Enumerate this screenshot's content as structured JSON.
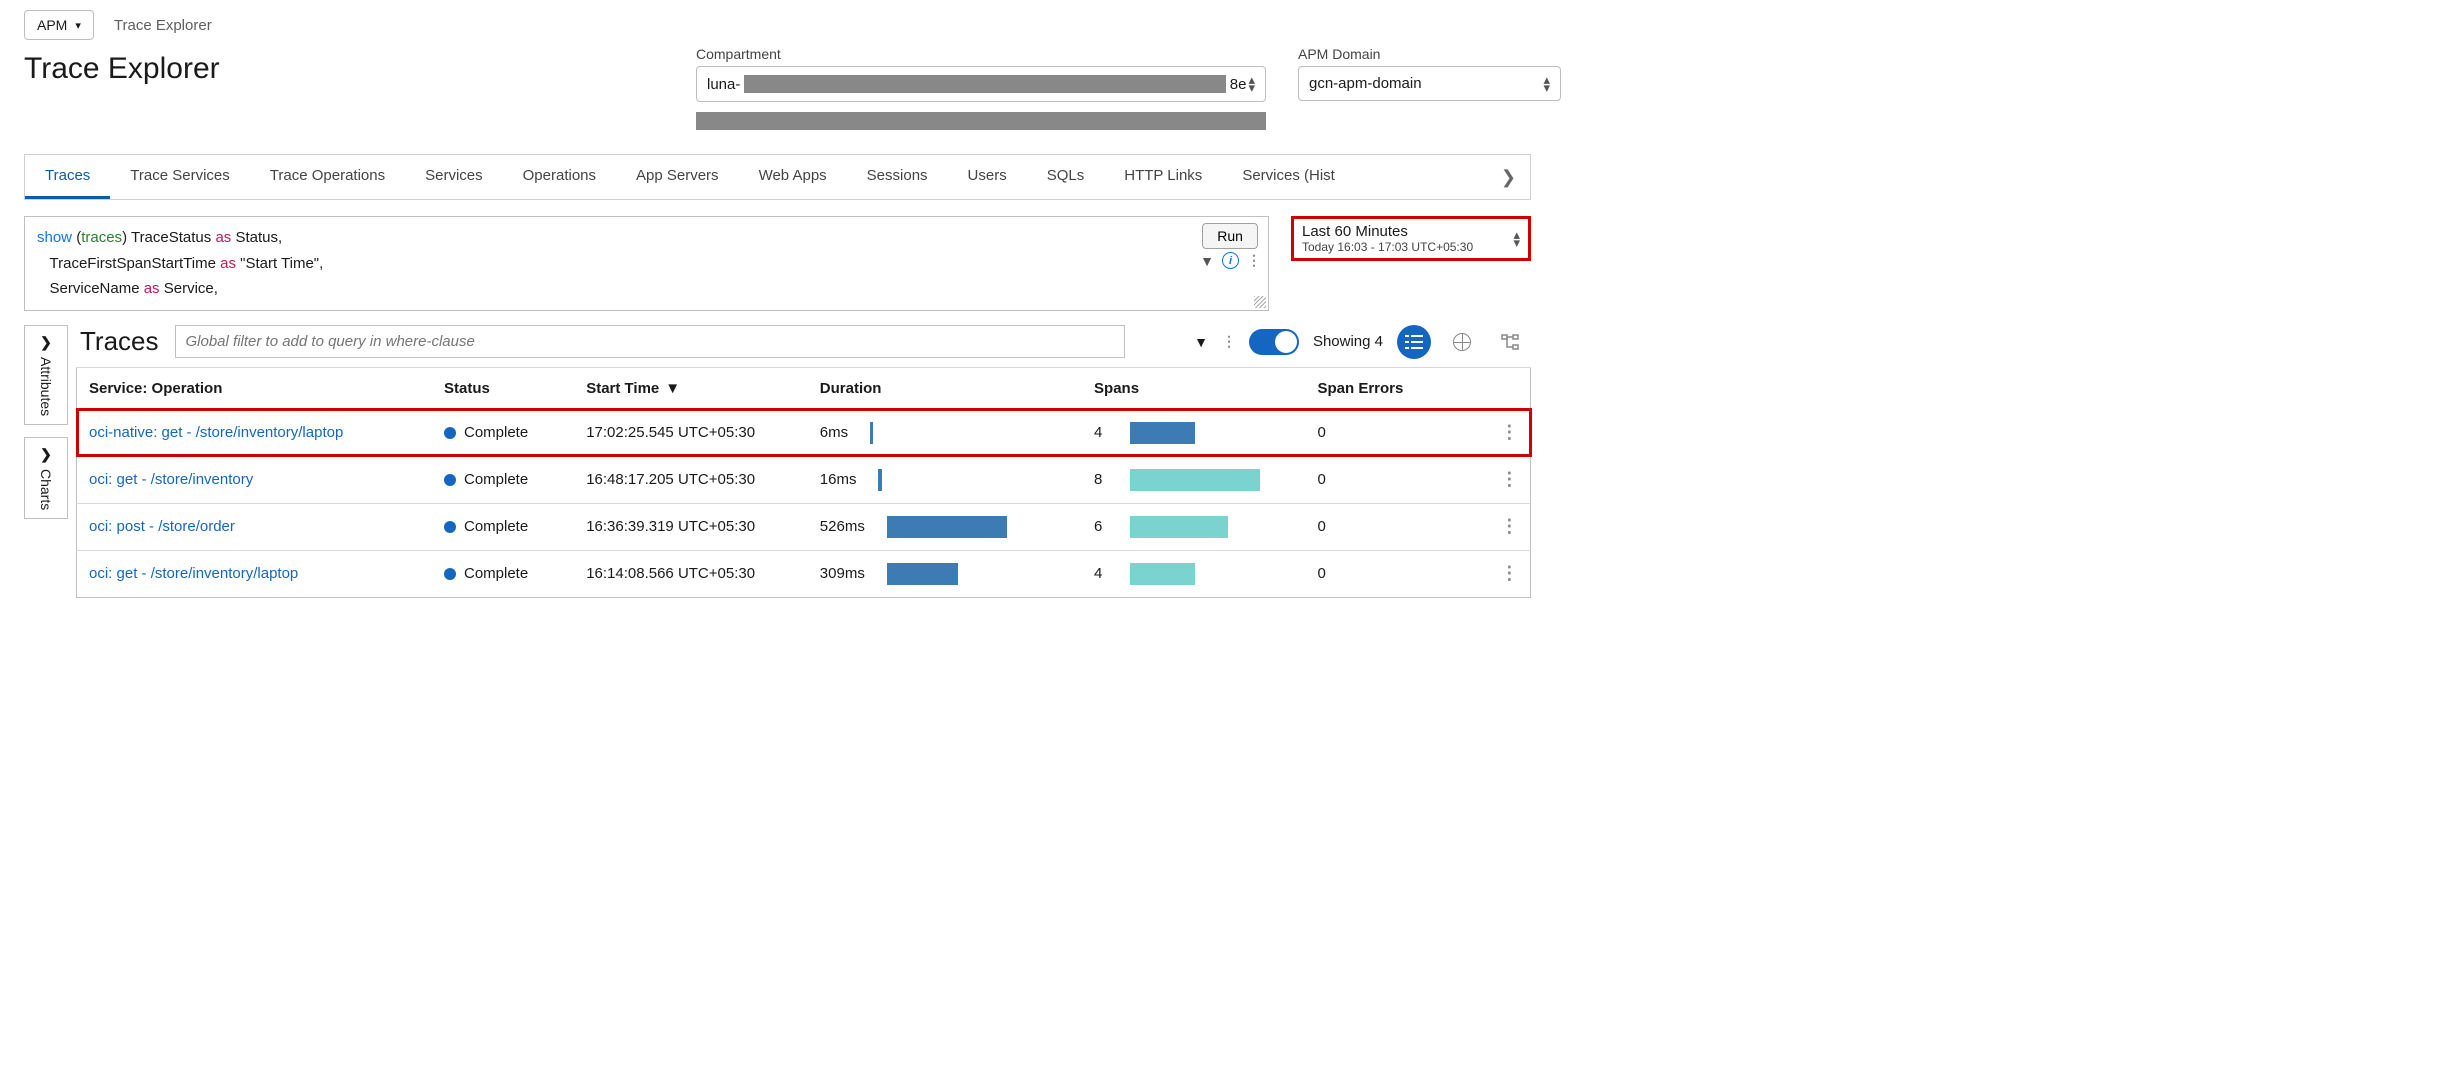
{
  "navSelect": {
    "label": "APM"
  },
  "breadcrumb": "Trace Explorer",
  "pageTitle": "Trace Explorer",
  "compartment": {
    "label": "Compartment",
    "prefix": "luna-",
    "suffix": "8e"
  },
  "apmDomain": {
    "label": "APM Domain",
    "value": "gcn-apm-domain"
  },
  "tabs": {
    "items": [
      "Traces",
      "Trace Services",
      "Trace Operations",
      "Services",
      "Operations",
      "App Servers",
      "Web Apps",
      "Sessions",
      "Users",
      "SQLs",
      "HTTP Links",
      "Services (Hist"
    ],
    "activeIndex": 0
  },
  "query": {
    "line1_show": "show",
    "line1_traces": "traces",
    "line1_rest1": " TraceStatus ",
    "line1_as": "as",
    "line1_rest2": " Status,",
    "line2_rest1": "TraceFirstSpanStartTime ",
    "line2_as": "as",
    "line2_rest2": " \"Start Time\",",
    "line3_rest1": "ServiceName ",
    "line3_as": "as",
    "line3_rest2": " Service,",
    "runLabel": "Run"
  },
  "timeRange": {
    "title": "Last 60 Minutes",
    "subtitle": "Today 16:03 - 17:03 UTC+05:30"
  },
  "sideTabs": {
    "attributes": "Attributes",
    "charts": "Charts"
  },
  "tracesHeader": {
    "title": "Traces",
    "filterPlaceholder": "Global filter to add to query in where-clause",
    "showingLabel": "Showing",
    "showingCount": "4"
  },
  "columns": {
    "op": "Service: Operation",
    "status": "Status",
    "start": "Start Time",
    "duration": "Duration",
    "spans": "Spans",
    "errors": "Span Errors"
  },
  "colors": {
    "durationBar": "#3c7bb3",
    "spansBarDark": "#3c7bb3",
    "spansBarLight": "#7ad3cf"
  },
  "durationMax": 526,
  "spansMax": 8,
  "rows": [
    {
      "op": "oci-native: get - /store/inventory/laptop",
      "status": "Complete",
      "start": "17:02:25.545 UTC+05:30",
      "durationText": "6ms",
      "durationVal": 6,
      "spans": "4",
      "spansVal": 4,
      "spansColor": "#3c7bb3",
      "errors": "0",
      "highlight": true
    },
    {
      "op": "oci: get - /store/inventory",
      "status": "Complete",
      "start": "16:48:17.205 UTC+05:30",
      "durationText": "16ms",
      "durationVal": 16,
      "spans": "8",
      "spansVal": 8,
      "spansColor": "#7ad3cf",
      "errors": "0",
      "highlight": false
    },
    {
      "op": "oci: post - /store/order",
      "status": "Complete",
      "start": "16:36:39.319 UTC+05:30",
      "durationText": "526ms",
      "durationVal": 526,
      "spans": "6",
      "spansVal": 6,
      "spansColor": "#7ad3cf",
      "errors": "0",
      "highlight": false
    },
    {
      "op": "oci: get - /store/inventory/laptop",
      "status": "Complete",
      "start": "16:14:08.566 UTC+05:30",
      "durationText": "309ms",
      "durationVal": 309,
      "spans": "4",
      "spansVal": 4,
      "spansColor": "#7ad3cf",
      "errors": "0",
      "highlight": false
    }
  ]
}
